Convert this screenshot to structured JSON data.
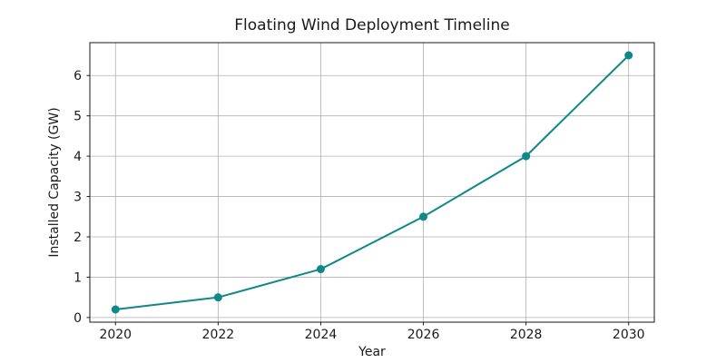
{
  "chart_data": {
    "type": "line",
    "title": "Floating Wind Deployment Timeline",
    "xlabel": "Year",
    "ylabel": "Installed Capacity (GW)",
    "series": [
      {
        "name": "Installed Capacity",
        "x": [
          2020,
          2022,
          2024,
          2026,
          2028,
          2030
        ],
        "y": [
          0.2,
          0.5,
          1.2,
          2.5,
          4.0,
          6.5
        ]
      }
    ],
    "x_ticks": [
      "2020",
      "2022",
      "2024",
      "2026",
      "2028",
      "2030"
    ],
    "x_tick_values": [
      2020,
      2022,
      2024,
      2026,
      2028,
      2030
    ],
    "y_ticks": [
      "0",
      "1",
      "2",
      "3",
      "4",
      "5",
      "6"
    ],
    "y_tick_values": [
      0,
      1,
      2,
      3,
      4,
      5,
      6
    ],
    "xlim": [
      2019.5,
      2030.5
    ],
    "ylim": [
      -0.115,
      6.815
    ],
    "grid": true,
    "legend": false,
    "colors": {
      "line": "#0e8888",
      "marker": "#0e8888",
      "grid": "#b0b0b0",
      "spine": "#1a1a1a",
      "background": "#ffffff"
    },
    "marker_style": "circle",
    "line_width": 2,
    "marker_radius": 4.5
  }
}
